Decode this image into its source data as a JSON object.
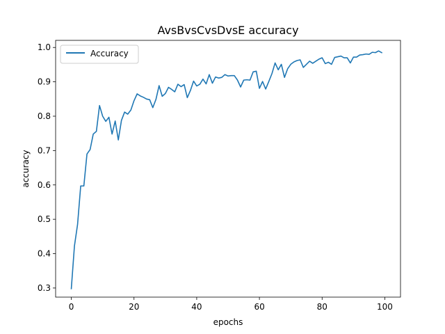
{
  "chart_data": {
    "type": "line",
    "title": "AvsBvsCvsDvsE accuracy",
    "xlabel": "epochs",
    "ylabel": "accuracy",
    "xlim": [
      -5,
      105
    ],
    "ylim": [
      0.2735,
      1.0207
    ],
    "xticks": [
      0,
      20,
      40,
      60,
      80,
      100
    ],
    "yticks": [
      0.3,
      0.4,
      0.5,
      0.6,
      0.7,
      0.8,
      0.9,
      1.0
    ],
    "xtick_labels": [
      "0",
      "20",
      "40",
      "60",
      "80",
      "100"
    ],
    "ytick_labels": [
      "0.3",
      "0.4",
      "0.5",
      "0.6",
      "0.7",
      "0.8",
      "0.9",
      "1.0"
    ],
    "grid": false,
    "legend": {
      "position": "upper-left",
      "entries": [
        "Accuracy"
      ]
    },
    "series": [
      {
        "name": "Accuracy",
        "color": "#1f77b4",
        "x": [
          0,
          1,
          2,
          3,
          4,
          5,
          6,
          7,
          8,
          9,
          10,
          11,
          12,
          13,
          14,
          15,
          16,
          17,
          18,
          19,
          20,
          21,
          22,
          23,
          24,
          25,
          26,
          27,
          28,
          29,
          30,
          31,
          32,
          33,
          34,
          35,
          36,
          37,
          38,
          39,
          40,
          41,
          42,
          43,
          44,
          45,
          46,
          47,
          48,
          49,
          50,
          51,
          52,
          53,
          54,
          55,
          56,
          57,
          58,
          59,
          60,
          61,
          62,
          63,
          64,
          65,
          66,
          67,
          68,
          69,
          70,
          71,
          72,
          73,
          74,
          75,
          76,
          77,
          78,
          79,
          80,
          81,
          82,
          83,
          84,
          85,
          86,
          87,
          88,
          89,
          90,
          91,
          92,
          93,
          94,
          95,
          96,
          97,
          98,
          99
        ],
        "values": [
          0.298,
          0.422,
          0.485,
          0.597,
          0.597,
          0.69,
          0.703,
          0.748,
          0.756,
          0.831,
          0.8,
          0.785,
          0.797,
          0.748,
          0.786,
          0.731,
          0.788,
          0.812,
          0.806,
          0.818,
          0.845,
          0.865,
          0.859,
          0.855,
          0.85,
          0.848,
          0.825,
          0.849,
          0.889,
          0.858,
          0.866,
          0.884,
          0.878,
          0.871,
          0.893,
          0.886,
          0.892,
          0.854,
          0.875,
          0.902,
          0.888,
          0.893,
          0.908,
          0.894,
          0.921,
          0.896,
          0.914,
          0.911,
          0.913,
          0.921,
          0.917,
          0.918,
          0.918,
          0.905,
          0.885,
          0.905,
          0.906,
          0.905,
          0.929,
          0.931,
          0.881,
          0.901,
          0.879,
          0.901,
          0.924,
          0.955,
          0.935,
          0.951,
          0.913,
          0.938,
          0.951,
          0.958,
          0.962,
          0.964,
          0.942,
          0.951,
          0.96,
          0.954,
          0.96,
          0.966,
          0.97,
          0.953,
          0.957,
          0.951,
          0.971,
          0.973,
          0.975,
          0.97,
          0.97,
          0.955,
          0.972,
          0.972,
          0.978,
          0.979,
          0.981,
          0.98,
          0.986,
          0.985,
          0.99,
          0.985
        ]
      }
    ]
  }
}
